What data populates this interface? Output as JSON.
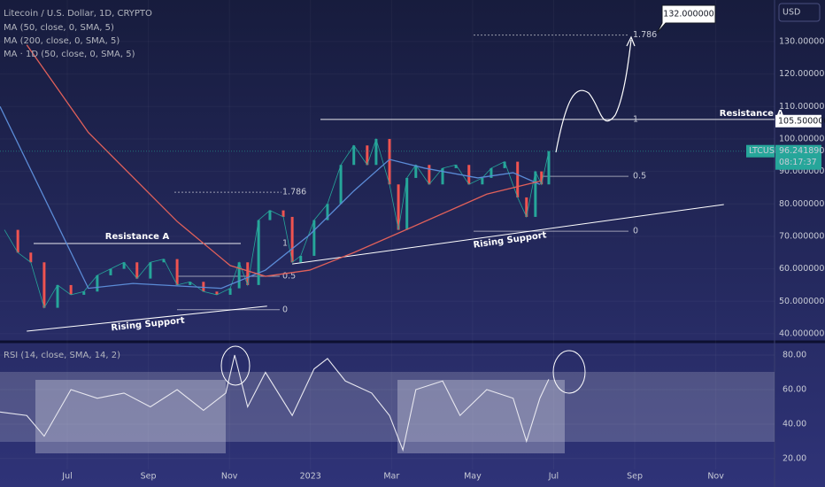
{
  "chart_data": {
    "type": "line",
    "title": "Litecoin / U.S. Dollar, 1D, CRYPTO",
    "legend_extra": "MA · 1D (50, close, 0, SMA, 5)",
    "currency": "USD",
    "xlim": [
      -1.66,
      17.45
    ],
    "xticks": [
      {
        "value": 0,
        "label": "Jul"
      },
      {
        "value": 2,
        "label": "Sep"
      },
      {
        "value": 4,
        "label": "Nov"
      },
      {
        "value": 6,
        "label": "2023"
      },
      {
        "value": 8,
        "label": "Mar"
      },
      {
        "value": 10,
        "label": "May"
      },
      {
        "value": 12,
        "label": "Jul"
      },
      {
        "value": 14,
        "label": "Sep"
      },
      {
        "value": 16,
        "label": "Nov"
      }
    ],
    "ylim": [
      37.8,
      142.8
    ],
    "yticks": [
      {
        "value": 40,
        "label": "40.000000"
      },
      {
        "value": 50,
        "label": "50.000000"
      },
      {
        "value": 60,
        "label": "60.000000"
      },
      {
        "value": 70,
        "label": "70.000000"
      },
      {
        "value": 80,
        "label": "80.000000"
      },
      {
        "value": 90,
        "label": "90.000000"
      },
      {
        "value": 100,
        "label": "100.000000"
      },
      {
        "value": 110,
        "label": "110.000000"
      },
      {
        "value": 120,
        "label": "120.000000"
      },
      {
        "value": 130,
        "label": "130.000000"
      }
    ],
    "series": [
      {
        "name": "LTCUSD",
        "color": "#26a69a",
        "x": [
          -1.55,
          -1.22,
          -0.9,
          -0.57,
          -0.24,
          0.09,
          0.41,
          0.74,
          1.07,
          1.4,
          1.72,
          2.05,
          2.38,
          2.71,
          3.03,
          3.36,
          3.69,
          4.02,
          4.24,
          4.45,
          4.72,
          5.0,
          5.33,
          5.55,
          5.76,
          6.09,
          6.42,
          6.75,
          7.07,
          7.4,
          7.62,
          7.95,
          8.17,
          8.38,
          8.6,
          8.93,
          9.26,
          9.59,
          9.91,
          10.24,
          10.46,
          10.79,
          11.11,
          11.33,
          11.55,
          11.7,
          11.88
        ],
        "values": [
          72,
          65,
          62,
          48,
          55,
          52,
          53,
          58,
          60,
          62,
          57,
          62,
          63,
          55,
          56,
          53,
          52,
          54,
          62,
          55,
          75,
          78,
          76,
          62,
          64,
          75,
          80,
          92,
          98,
          92,
          100,
          86,
          72,
          88,
          92,
          86,
          91,
          92,
          86,
          88,
          91,
          93,
          82,
          76,
          90,
          86,
          96.24189
        ],
        "last_label": "96.241890",
        "countdown": "08:17:37"
      },
      {
        "name": "MA (50, close, 0, SMA, 5)",
        "color": "#5b8bd6",
        "x": [
          -1.66,
          0.52,
          1.62,
          3.8,
          4.89,
          5.98,
          7.07,
          7.95,
          8.82,
          10.13,
          11.0,
          11.66
        ],
        "values": [
          110,
          54,
          55.5,
          54,
          59.6,
          70.5,
          84,
          93.7,
          91,
          88,
          89.6,
          86
        ]
      },
      {
        "name": "MA (200, close, 0, SMA, 5)",
        "color": "#e0605a",
        "x": [
          -1.0,
          0.52,
          2.71,
          4.02,
          4.89,
          5.98,
          7.07,
          8.17,
          9.26,
          10.35,
          11.66
        ],
        "values": [
          129,
          102,
          74.6,
          61,
          57.7,
          59.6,
          65,
          71,
          77,
          83,
          87
        ]
      }
    ],
    "resistance": {
      "value": 105.5,
      "label": "105.500000"
    },
    "target": {
      "value": 132,
      "label": "132.000000"
    },
    "fib_left": [
      {
        "value": 83.6,
        "label": "1.786"
      },
      {
        "value": 67.8,
        "label": "1"
      },
      {
        "value": 57.7,
        "label": "0.5"
      },
      {
        "value": 47.4,
        "label": "0"
      }
    ],
    "fib_right": [
      {
        "value": 132,
        "label": "1.786"
      },
      {
        "value": 106,
        "label": "1"
      },
      {
        "value": 88.5,
        "label": "0.5"
      },
      {
        "value": 71.6,
        "label": "0"
      }
    ],
    "support_left": {
      "x": [
        -1.0,
        4.93
      ],
      "values": [
        40.8,
        48.5
      ]
    },
    "support_right": {
      "x": [
        5.55,
        16.2
      ],
      "values": [
        61.5,
        79.8
      ]
    },
    "annotations": [
      "Resistance A",
      "Resistance A",
      "Rising Support",
      "Rising Support"
    ],
    "rsi": {
      "label": "RSI (14, close, SMA, 14, 2)",
      "color": "#e8e8f0",
      "ylim": [
        13.8,
        86.7
      ],
      "yticks": [
        {
          "value": 20,
          "label": "20.00"
        },
        {
          "value": 40,
          "label": "40.00"
        },
        {
          "value": 60,
          "label": "60.00"
        },
        {
          "value": 80,
          "label": "80.00"
        }
      ],
      "x": [
        -1.66,
        -1.0,
        -0.57,
        0.09,
        0.74,
        1.4,
        2.05,
        2.71,
        3.36,
        3.91,
        4.13,
        4.45,
        4.89,
        5.55,
        6.09,
        6.42,
        6.86,
        7.51,
        7.95,
        8.28,
        8.6,
        9.26,
        9.69,
        10.35,
        11.0,
        11.33,
        11.66,
        11.88
      ],
      "values": [
        47,
        45,
        33,
        60,
        55,
        58,
        50,
        60,
        48,
        58,
        80,
        50,
        70,
        45,
        72,
        78,
        65,
        58,
        45,
        25,
        60,
        65,
        45,
        60,
        55,
        30,
        55,
        66
      ]
    }
  }
}
